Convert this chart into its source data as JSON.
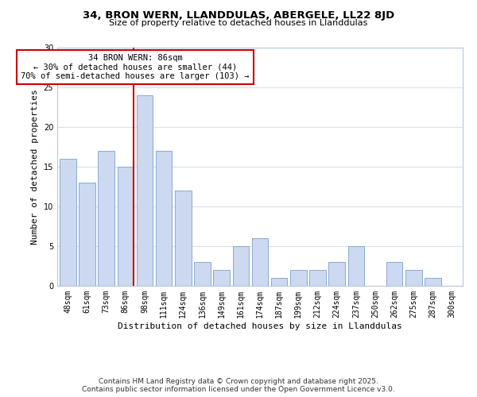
{
  "title": "34, BRON WERN, LLANDDULAS, ABERGELE, LL22 8JD",
  "subtitle": "Size of property relative to detached houses in Llanddulas",
  "xlabel": "Distribution of detached houses by size in Llanddulas",
  "ylabel": "Number of detached properties",
  "footer_line1": "Contains HM Land Registry data © Crown copyright and database right 2025.",
  "footer_line2": "Contains public sector information licensed under the Open Government Licence v3.0.",
  "bar_labels": [
    "48sqm",
    "61sqm",
    "73sqm",
    "86sqm",
    "98sqm",
    "111sqm",
    "124sqm",
    "136sqm",
    "149sqm",
    "161sqm",
    "174sqm",
    "187sqm",
    "199sqm",
    "212sqm",
    "224sqm",
    "237sqm",
    "250sqm",
    "262sqm",
    "275sqm",
    "287sqm",
    "300sqm"
  ],
  "bar_values": [
    16,
    13,
    17,
    15,
    24,
    17,
    12,
    3,
    2,
    5,
    6,
    1,
    2,
    2,
    3,
    5,
    0,
    3,
    2,
    1,
    0
  ],
  "bar_color": "#ccd9f0",
  "bar_edge_color": "#8aabcf",
  "grid_color": "#d8e2ef",
  "vline_index": 3,
  "vline_color": "#cc0000",
  "annotation_title": "34 BRON WERN: 86sqm",
  "annotation_line1": "← 30% of detached houses are smaller (44)",
  "annotation_line2": "70% of semi-detached houses are larger (103) →",
  "annotation_box_edge": "#cc0000",
  "ylim": [
    0,
    30
  ],
  "yticks": [
    0,
    5,
    10,
    15,
    20,
    25,
    30
  ],
  "background_color": "#ffffff",
  "title_fontsize": 9.5,
  "subtitle_fontsize": 8,
  "axis_label_fontsize": 8,
  "tick_fontsize": 7,
  "footer_fontsize": 6.5,
  "annotation_fontsize": 7.5
}
